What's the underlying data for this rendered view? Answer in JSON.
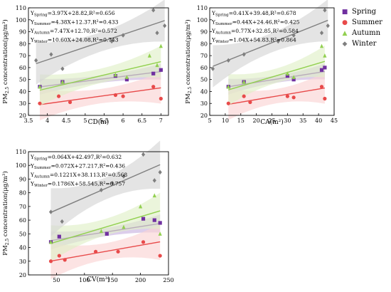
{
  "colors": {
    "spring": "#7030a0",
    "summer": "#e84a4a",
    "autumn": "#92d050",
    "winter": "#7f7f7f"
  },
  "legend": [
    {
      "name": "Spring",
      "color": "#7030a0",
      "icon": "square"
    },
    {
      "name": "Summer",
      "color": "#e84a4a",
      "icon": "circle"
    },
    {
      "name": "Autumn",
      "color": "#92d050",
      "icon": "triangle"
    },
    {
      "name": "Winter",
      "color": "#7f7f7f",
      "icon": "diamond"
    }
  ],
  "chart_data": [
    {
      "type": "scatter",
      "xlabel": "CD(m)",
      "ylabel_main": "PM",
      "ylabel_sub": "2.5",
      "ylabel_rest": " concentration(μg/m³)",
      "xlim": [
        3.5,
        7.2
      ],
      "ylim": [
        20,
        110
      ],
      "xticks": [
        3.5,
        4.0,
        4.5,
        5.0,
        5.5,
        6.0,
        6.5,
        7.0
      ],
      "yticks": [
        20,
        30,
        40,
        50,
        60,
        70,
        80,
        90,
        100,
        110
      ],
      "equations": [
        {
          "sub": "Spring",
          "text": "=3.97X+28.82,R²=0.656"
        },
        {
          "sub": "Summer",
          "text": "=4.38X+12.37,R²=0.433"
        },
        {
          "sub": "Autumn",
          "text": "=7.47X+12.70,R²=0.572"
        },
        {
          "sub": "Winter",
          "text": "=10.60X+24.08,R²=0.743"
        }
      ],
      "series": [
        {
          "name": "Spring",
          "x": [
            3.8,
            4.4,
            5.8,
            6.1,
            6.8,
            7.0
          ],
          "y": [
            44,
            48,
            53,
            50,
            55,
            58
          ]
        },
        {
          "name": "Summer",
          "x": [
            3.8,
            4.3,
            4.6,
            5.8,
            6.0,
            6.8,
            7.0
          ],
          "y": [
            30,
            36,
            31,
            37,
            36,
            44,
            34
          ]
        },
        {
          "name": "Autumn",
          "x": [
            3.8,
            4.4,
            5.8,
            6.1,
            6.7,
            6.9,
            7.0
          ],
          "y": [
            44,
            48,
            54,
            52,
            70,
            62,
            78
          ]
        },
        {
          "name": "Winter",
          "x": [
            3.7,
            4.1,
            4.4,
            5.7,
            6.0,
            6.8,
            6.9,
            7.1
          ],
          "y": [
            66,
            71,
            59,
            82,
            87,
            108,
            89,
            95
          ]
        }
      ],
      "fits": [
        {
          "name": "Spring",
          "a": 3.97,
          "b": 28.82,
          "band": 3
        },
        {
          "name": "Summer",
          "a": 4.38,
          "b": 12.37,
          "band": 6
        },
        {
          "name": "Autumn",
          "a": 7.47,
          "b": 12.7,
          "band": 6
        },
        {
          "name": "Winter",
          "a": 10.6,
          "b": 24.08,
          "band": 8
        }
      ]
    },
    {
      "type": "scatter",
      "xlabel": "CA(m²)",
      "ylabel_main": "PM",
      "ylabel_sub": "2.5",
      "ylabel_rest": " concentration(μg/m³)",
      "xlim": [
        5,
        45
      ],
      "ylim": [
        20,
        110
      ],
      "xticks": [
        5,
        10,
        15,
        20,
        25,
        30,
        35,
        40,
        45
      ],
      "yticks": [
        20,
        30,
        40,
        50,
        60,
        70,
        80,
        90,
        100,
        110
      ],
      "equations": [
        {
          "sub": "Spring",
          "text": "=0.41X+39.48,R²=0.678"
        },
        {
          "sub": "Summer",
          "text": "=0.44X+24.46,R²=0.425"
        },
        {
          "sub": "Autumn",
          "text": "=0.77X+32.85,R²=0.584"
        },
        {
          "sub": "Winter",
          "text": "=1.04X+54.83,R²=0.864"
        }
      ],
      "series": [
        {
          "name": "Spring",
          "x": [
            11,
            16,
            30,
            32,
            41,
            42
          ],
          "y": [
            44,
            48,
            53,
            50,
            58,
            60
          ]
        },
        {
          "name": "Summer",
          "x": [
            11,
            16,
            18,
            30,
            32,
            41,
            42
          ],
          "y": [
            30,
            36,
            31,
            36,
            35,
            44,
            34
          ]
        },
        {
          "name": "Autumn",
          "x": [
            11,
            16,
            30,
            32,
            41,
            42
          ],
          "y": [
            44,
            48,
            55,
            52,
            78,
            70
          ]
        },
        {
          "name": "Winter",
          "x": [
            6,
            11,
            16,
            27,
            32,
            41,
            42,
            43
          ],
          "y": [
            59,
            66,
            71,
            82,
            87,
            89,
            108,
            95
          ]
        }
      ],
      "fits": [
        {
          "name": "Spring",
          "a": 0.41,
          "b": 39.48,
          "band": 3
        },
        {
          "name": "Summer",
          "a": 0.44,
          "b": 24.46,
          "band": 6
        },
        {
          "name": "Autumn",
          "a": 0.77,
          "b": 32.85,
          "band": 6
        },
        {
          "name": "Winter",
          "a": 1.04,
          "b": 54.83,
          "band": 8
        }
      ]
    },
    {
      "type": "scatter",
      "xlabel": "CV(m³)",
      "ylabel_main": "PM",
      "ylabel_sub": "2.5",
      "ylabel_rest": " concentration(μg/m³)",
      "xlim": [
        0,
        250
      ],
      "ylim": [
        20,
        110
      ],
      "xticks": [
        50,
        100,
        150,
        200,
        250
      ],
      "yticks": [
        20,
        30,
        40,
        50,
        60,
        70,
        80,
        90,
        100,
        110
      ],
      "equations": [
        {
          "sub": "Spring",
          "text": "=0.064X+42.497,R²=0.632"
        },
        {
          "sub": "Summer",
          "text": "=0.072X+27.217,R²=0.436"
        },
        {
          "sub": "Autumn",
          "text": "=0.1221X+38.113,R²=0.568"
        },
        {
          "sub": "Winter",
          "text": "=0.1786X+58.545,R²=0.757"
        }
      ],
      "series": [
        {
          "name": "Spring",
          "x": [
            40,
            55,
            140,
            205,
            225,
            235
          ],
          "y": [
            44,
            48,
            50,
            61,
            60,
            58
          ]
        },
        {
          "name": "Summer",
          "x": [
            40,
            55,
            65,
            120,
            160,
            205,
            235
          ],
          "y": [
            30,
            34,
            31,
            37,
            37,
            44,
            34
          ]
        },
        {
          "name": "Autumn",
          "x": [
            40,
            130,
            170,
            200,
            225,
            235
          ],
          "y": [
            44,
            52,
            55,
            70,
            78,
            50
          ]
        },
        {
          "name": "Winter",
          "x": [
            40,
            60,
            130,
            150,
            170,
            205,
            225,
            235
          ],
          "y": [
            66,
            59,
            82,
            87,
            92,
            108,
            89,
            95
          ]
        }
      ],
      "fits": [
        {
          "name": "Spring",
          "a": 0.064,
          "b": 42.497,
          "band": 3
        },
        {
          "name": "Summer",
          "a": 0.072,
          "b": 27.217,
          "band": 6
        },
        {
          "name": "Autumn",
          "a": 0.1221,
          "b": 38.113,
          "band": 6
        },
        {
          "name": "Winter",
          "a": 0.1786,
          "b": 58.545,
          "band": 8
        }
      ]
    }
  ]
}
